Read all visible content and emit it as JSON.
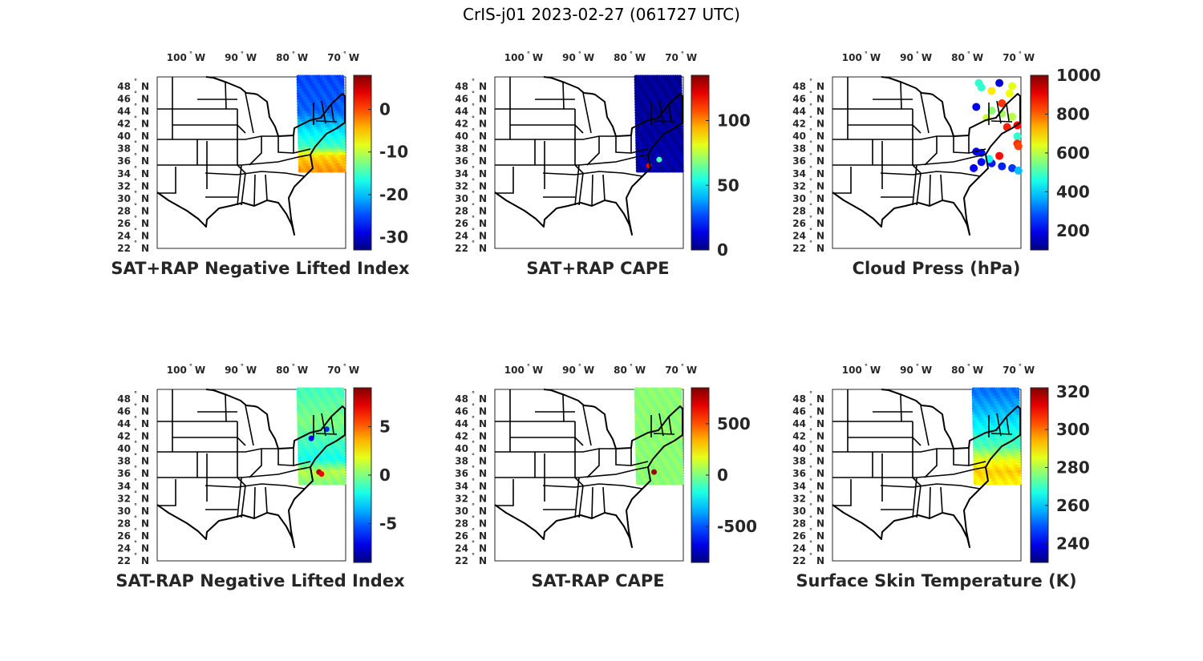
{
  "figure_title": "CrIS-j01 2023-02-27 (061727 UTC)",
  "chart_data": [
    {
      "type": "heatmap",
      "title": "SAT+RAP Negative Lifted Index",
      "colorbar": {
        "range": [
          -33,
          8
        ],
        "ticks": [
          0,
          -10,
          -20,
          -30
        ],
        "tick_labels": [
          "0",
          "-10",
          "-20",
          "-30"
        ],
        "colormap": "jet"
      },
      "swath_profile": [
        [
          49,
          -25
        ],
        [
          44,
          -24
        ],
        [
          41,
          -19
        ],
        [
          38,
          -15
        ],
        [
          36.5,
          -6
        ],
        [
          35,
          -4
        ],
        [
          34,
          -3
        ]
      ],
      "points": []
    },
    {
      "type": "heatmap",
      "title": "SAT+RAP CAPE",
      "colorbar": {
        "range": [
          0,
          135
        ],
        "ticks": [
          100,
          50,
          0
        ],
        "tick_labels": [
          "100",
          "50",
          "0"
        ],
        "colormap": "jet"
      },
      "swath_profile": [
        [
          49,
          3
        ],
        [
          40,
          4
        ],
        [
          36,
          6
        ],
        [
          34,
          5
        ]
      ],
      "points": [
        [
          -77,
          35,
          120
        ],
        [
          -75,
          36,
          60
        ]
      ]
    },
    {
      "type": "scatter",
      "title": "Cloud Press (hPa)",
      "colorbar": {
        "range": [
          100,
          1000
        ],
        "ticks": [
          1000,
          800,
          600,
          400,
          200
        ],
        "tick_labels": [
          "1000",
          "800",
          "600",
          "400",
          "200"
        ],
        "colormap": "jet"
      },
      "swath_profile": [],
      "points": [
        [
          -78.5,
          48.5,
          480
        ],
        [
          -78,
          47.8,
          480
        ],
        [
          -74.5,
          48.5,
          180
        ],
        [
          -72,
          48,
          640
        ],
        [
          -76,
          47.2,
          680
        ],
        [
          -72.5,
          46.8,
          650
        ],
        [
          -79,
          44.6,
          200
        ],
        [
          -74,
          45.2,
          840
        ],
        [
          -76,
          44,
          560
        ],
        [
          -74,
          43.5,
          580
        ],
        [
          -72,
          43,
          600
        ],
        [
          -77,
          42.8,
          620
        ],
        [
          -71,
          41.6,
          880
        ],
        [
          -73,
          41.3,
          860
        ],
        [
          -71,
          39.8,
          480
        ],
        [
          -71,
          38.6,
          850
        ],
        [
          -70.8,
          38.2,
          830
        ],
        [
          -79,
          37.3,
          200
        ],
        [
          -78,
          37.1,
          220
        ],
        [
          -78,
          35.6,
          220
        ],
        [
          -76,
          35.4,
          230
        ],
        [
          -74,
          34.9,
          240
        ],
        [
          -79.5,
          34.6,
          210
        ],
        [
          -72,
          34.6,
          260
        ],
        [
          -70.8,
          34.2,
          380
        ],
        [
          -76.5,
          36.1,
          450
        ],
        [
          -74.5,
          36.6,
          880
        ]
      ]
    },
    {
      "type": "heatmap",
      "title": "SAT-RAP Negative Lifted Index",
      "colorbar": {
        "range": [
          -9,
          9
        ],
        "ticks": [
          5,
          0,
          -5
        ],
        "tick_labels": [
          "5",
          "0",
          "-5"
        ],
        "colormap": "jet"
      },
      "swath_profile": [
        [
          49,
          -1
        ],
        [
          44,
          0
        ],
        [
          41,
          -1
        ],
        [
          38,
          -2
        ],
        [
          36,
          1
        ],
        [
          34,
          0
        ]
      ],
      "points": [
        [
          -75.5,
          36,
          8
        ],
        [
          -75,
          35.7,
          7
        ],
        [
          -77,
          41.5,
          -7
        ],
        [
          -74,
          43,
          -6
        ]
      ]
    },
    {
      "type": "heatmap",
      "title": "SAT-RAP CAPE",
      "colorbar": {
        "range": [
          -850,
          850
        ],
        "ticks": [
          500,
          0,
          -500
        ],
        "tick_labels": [
          "500",
          "0",
          "-500"
        ],
        "colormap": "jet"
      },
      "swath_profile": [
        [
          49,
          20
        ],
        [
          34,
          20
        ]
      ],
      "points": [
        [
          -76,
          36,
          800
        ]
      ]
    },
    {
      "type": "heatmap",
      "title": "Surface Skin Temperature (K)",
      "colorbar": {
        "range": [
          230,
          322
        ],
        "ticks": [
          320,
          300,
          280,
          260,
          240
        ],
        "tick_labels": [
          "320",
          "300",
          "280",
          "260",
          "240"
        ],
        "colormap": "jet"
      },
      "swath_profile": [
        [
          49,
          252
        ],
        [
          46,
          258
        ],
        [
          43,
          265
        ],
        [
          40,
          272
        ],
        [
          38,
          285
        ],
        [
          36,
          292
        ],
        [
          34,
          288
        ]
      ],
      "points": []
    }
  ],
  "axes": {
    "lon_ticks": [
      {
        "value": -100,
        "label": "100",
        "hemi": "W"
      },
      {
        "value": -90,
        "label": "90",
        "hemi": "W"
      },
      {
        "value": -80,
        "label": "80",
        "hemi": "W"
      },
      {
        "value": -70,
        "label": "70",
        "hemi": "W"
      }
    ],
    "lat_ticks": [
      {
        "value": 48,
        "label": "48"
      },
      {
        "value": 46,
        "label": "46"
      },
      {
        "value": 44,
        "label": "44"
      },
      {
        "value": 42,
        "label": "42"
      },
      {
        "value": 40,
        "label": "40"
      },
      {
        "value": 38,
        "label": "38"
      },
      {
        "value": 36,
        "label": "36"
      },
      {
        "value": 34,
        "label": "34"
      },
      {
        "value": 32,
        "label": "32"
      },
      {
        "value": 30,
        "label": "30"
      },
      {
        "value": 28,
        "label": "28"
      },
      {
        "value": 26,
        "label": "26"
      },
      {
        "value": 24,
        "label": "24"
      },
      {
        "value": 22,
        "label": "22"
      }
    ],
    "lat_hemi": "N",
    "degree": "°",
    "lon_range": [
      -107,
      -70.3
    ],
    "lat_range": [
      21.5,
      49.5
    ],
    "swath_lon_range": [
      -79.5,
      -70.5
    ],
    "swath_lat_range": [
      34,
      49.5
    ]
  }
}
